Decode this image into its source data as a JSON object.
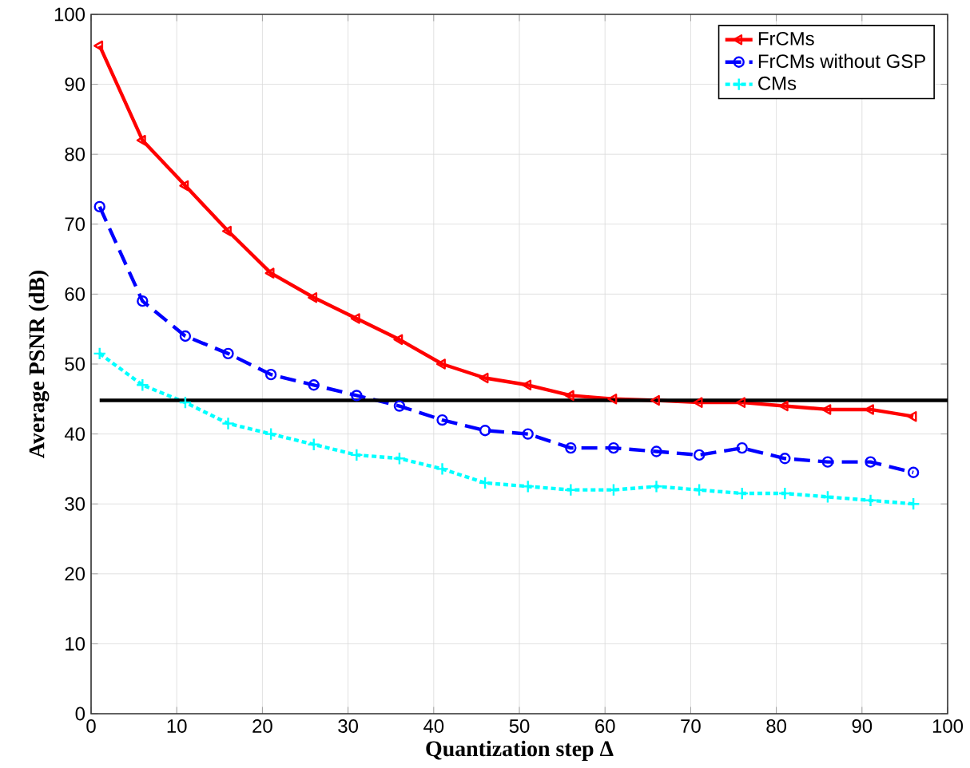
{
  "chart_data": {
    "type": "line",
    "xlabel": "Quantization step Δ",
    "ylabel": "Average PSNR (dB)",
    "x": [
      1,
      6,
      11,
      16,
      21,
      26,
      31,
      36,
      41,
      46,
      51,
      56,
      61,
      66,
      71,
      76,
      81,
      86,
      91,
      96
    ],
    "xlim": [
      0,
      100
    ],
    "ylim": [
      0,
      100
    ],
    "xticks": [
      0,
      10,
      20,
      30,
      40,
      50,
      60,
      70,
      80,
      90,
      100
    ],
    "yticks": [
      0,
      10,
      20,
      30,
      40,
      50,
      60,
      70,
      80,
      90,
      100
    ],
    "grid": true,
    "legend": "top right",
    "series": [
      {
        "name": "FrCMs",
        "color": "#ff0000",
        "marker": "triangle",
        "line_style": "solid",
        "values": [
          95.5,
          82,
          75.5,
          69,
          63,
          59.5,
          56.5,
          53.5,
          50,
          48,
          47,
          45.5,
          45,
          44.8,
          44.5,
          44.5,
          44,
          43.5,
          43.5,
          42.5
        ]
      },
      {
        "name": "FrCMs without GSP",
        "color": "#0000ff",
        "marker": "circle",
        "line_style": "dashed",
        "values": [
          72.5,
          59,
          54,
          51.5,
          48.5,
          47,
          45.5,
          44,
          42,
          40.5,
          40,
          38,
          38,
          37.5,
          37,
          38,
          36.5,
          36,
          36,
          34.5
        ]
      },
      {
        "name": "CMs",
        "color": "#00ffff",
        "marker": "cross",
        "line_style": "dotted",
        "values": [
          51.5,
          47,
          44.5,
          41.5,
          40,
          38.5,
          37,
          36.5,
          35,
          33,
          32.5,
          32,
          32,
          32.5,
          32,
          31.5,
          31.5,
          31,
          30.5,
          30
        ]
      }
    ],
    "ref_lines": [
      {
        "axis": "y",
        "value": 44.8,
        "color": "#000000",
        "line_style": "solid"
      }
    ]
  }
}
